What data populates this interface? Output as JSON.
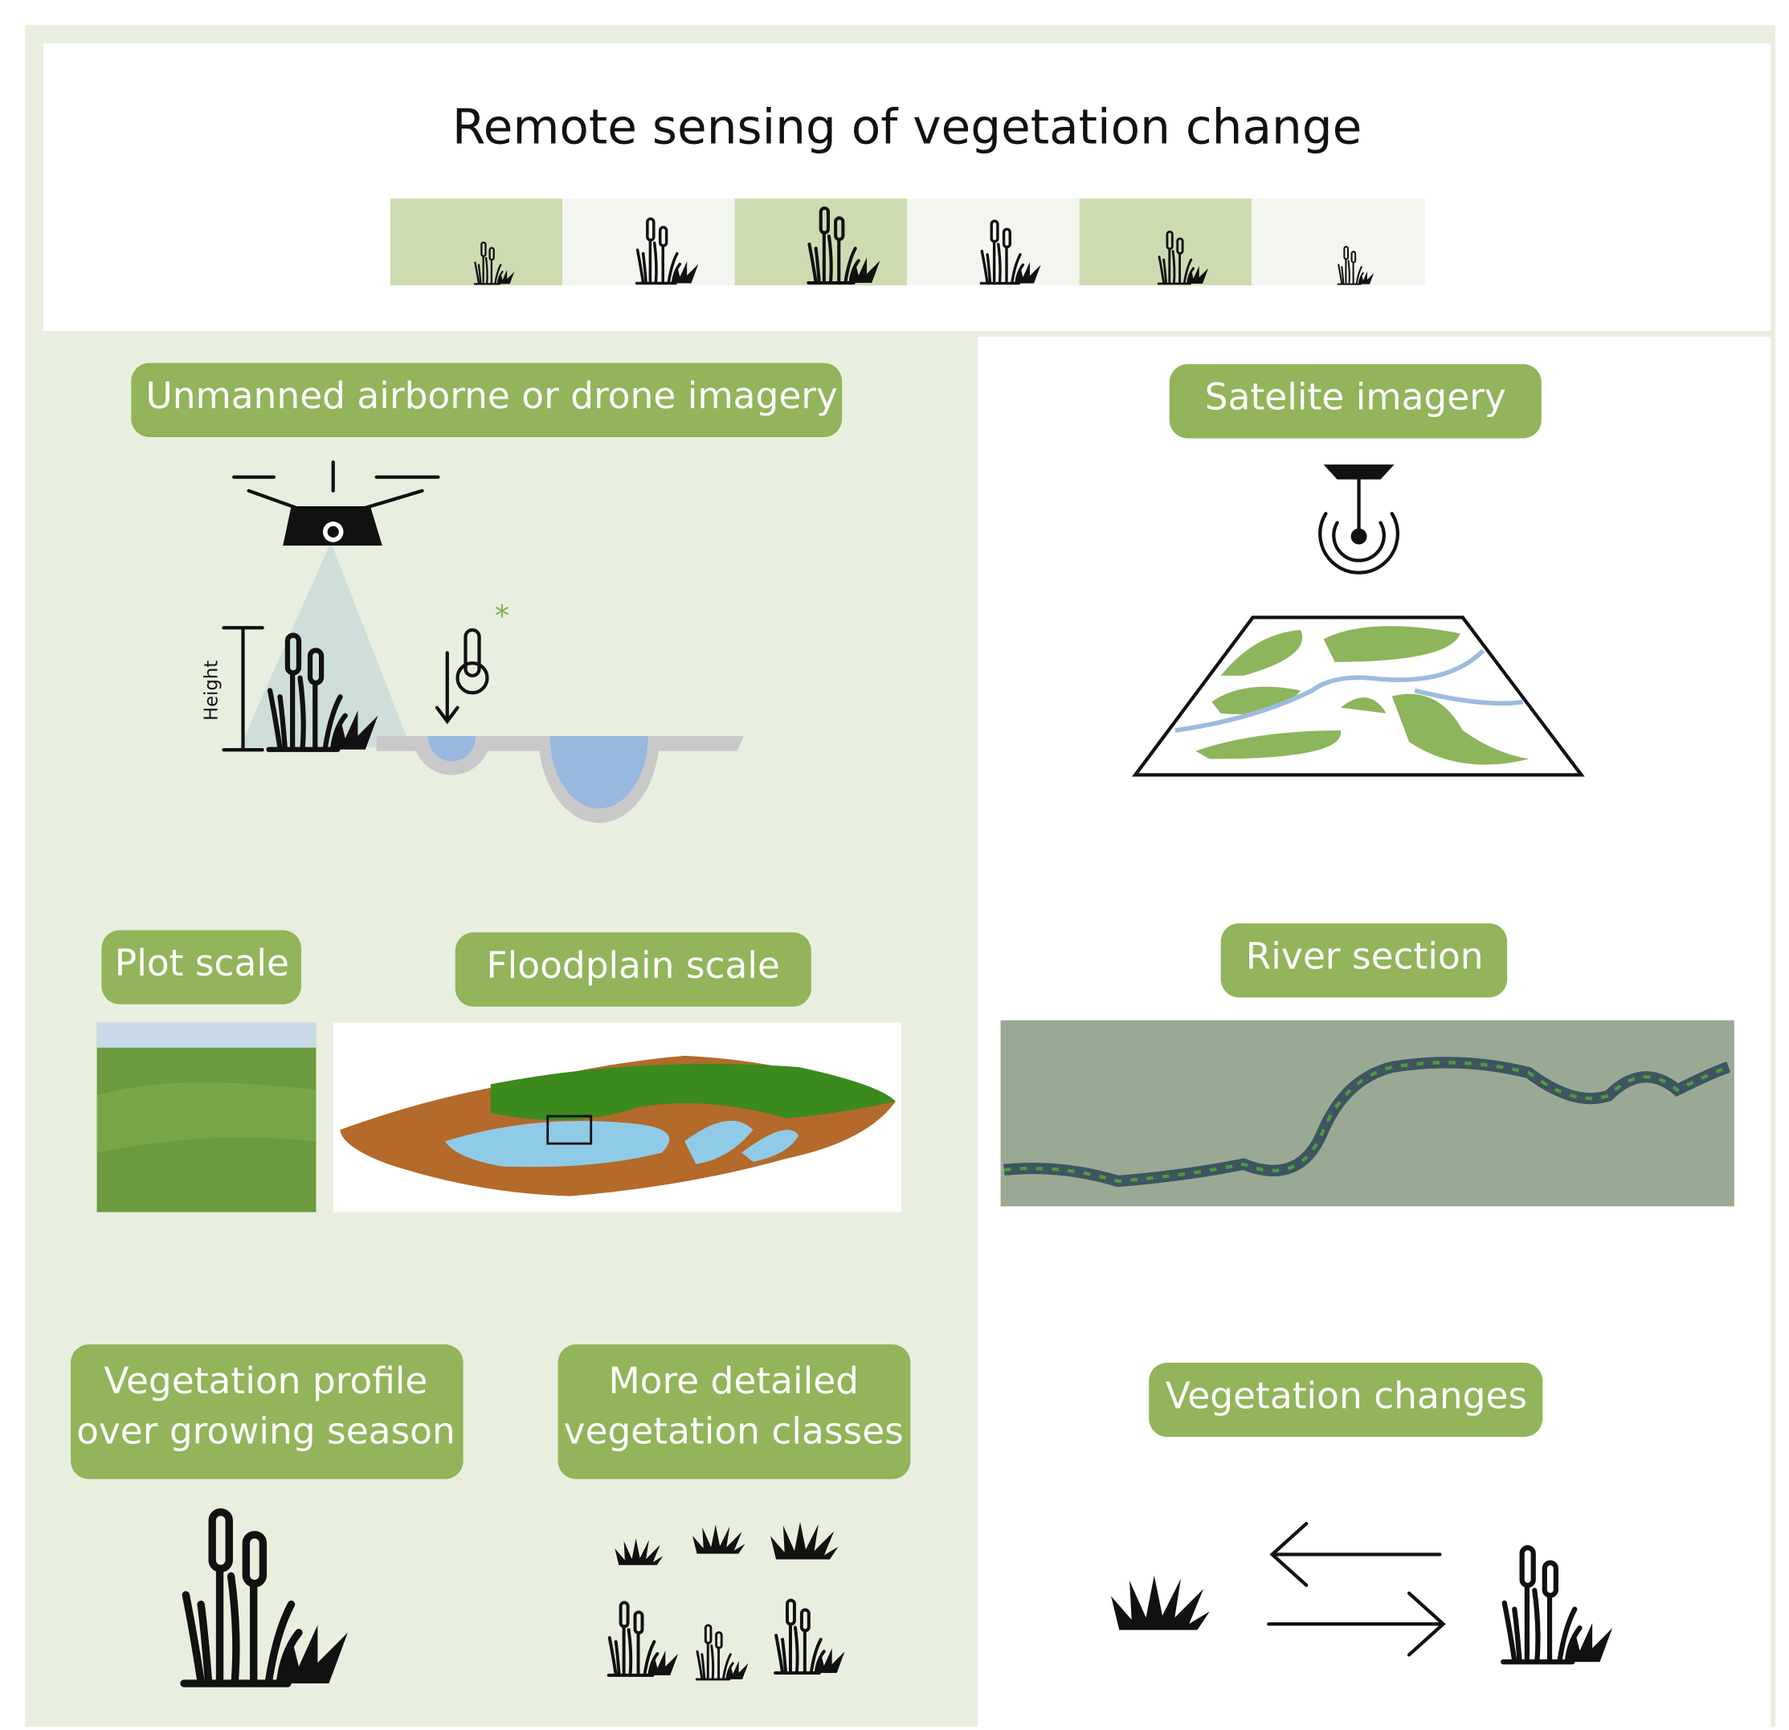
{
  "title": "Remote sensing of vegetation change",
  "drone": {
    "label": "Unmanned airborne or drone imagery",
    "axis_label": "Height"
  },
  "satellite": {
    "label": "Satelite imagery"
  },
  "scales": {
    "plot": "Plot scale",
    "floodplain": "Floodplain scale",
    "river": "River section"
  },
  "outcomes": {
    "profile": [
      "Vegetation profile",
      "over growing season"
    ],
    "classes": [
      "More detailed",
      "vegetation classes"
    ],
    "changes": "Vegetation changes"
  }
}
